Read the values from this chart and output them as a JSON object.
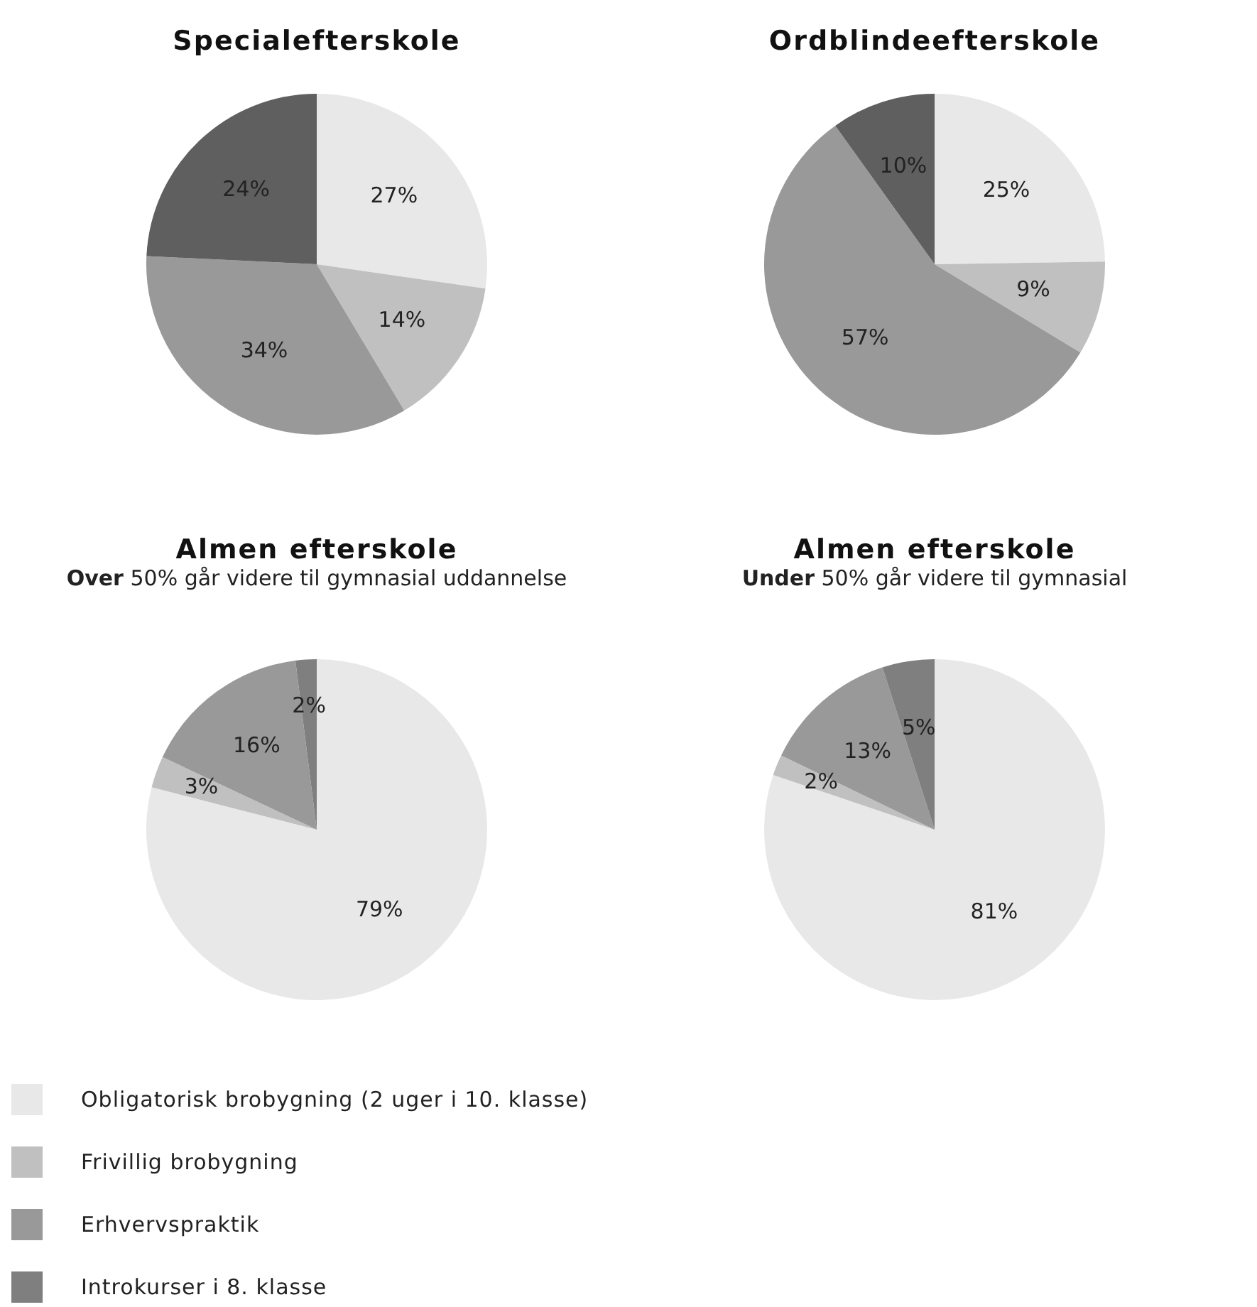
{
  "chart_data": [
    {
      "type": "pie",
      "title": "Specialefterskole",
      "categories": [
        null,
        null,
        null,
        null
      ],
      "values": [
        27,
        14,
        34,
        24
      ],
      "colors": [
        "#e8e8e8",
        "#c0c0c0",
        "#999999",
        "#5f5f5f"
      ],
      "value_labels": [
        "27%",
        "14%",
        "34%",
        "24%"
      ]
    },
    {
      "type": "pie",
      "title": "Ordblindeefterskole",
      "categories": [
        null,
        null,
        null,
        null
      ],
      "values": [
        25,
        9,
        57,
        10
      ],
      "colors": [
        "#e8e8e8",
        "#c0c0c0",
        "#999999",
        "#5f5f5f"
      ],
      "value_labels": [
        "25%",
        "9%",
        "57%",
        "10%"
      ]
    },
    {
      "type": "pie",
      "title": "Almen efterskole",
      "subtitle": "Over 50% går videre til gymnasial uddannelse",
      "categories": [
        null,
        null,
        null,
        null
      ],
      "values": [
        79,
        3,
        16,
        2
      ],
      "colors": [
        "#e8e8e8",
        "#c0c0c0",
        "#999999",
        "#7f7f7f"
      ],
      "value_labels": [
        "79%",
        "3%",
        "16%",
        "2%"
      ]
    },
    {
      "type": "pie",
      "title": "Almen efterskole",
      "subtitle": "Under 50% går videre til gymnasial",
      "categories": [
        "Obligatorisk brobygning (2 uger i 10. klasse)",
        "Frivillig brobygning",
        "Erhvervspraktik",
        "Introkurser i 8. klasse"
      ],
      "values": [
        81,
        2,
        13,
        5
      ],
      "colors": [
        "#e8e8e8",
        "#c0c0c0",
        "#999999",
        "#7f7f7f"
      ],
      "value_labels": [
        "81%",
        "2%",
        "13%",
        "5%"
      ],
      "legend": "bottom"
    }
  ]
}
